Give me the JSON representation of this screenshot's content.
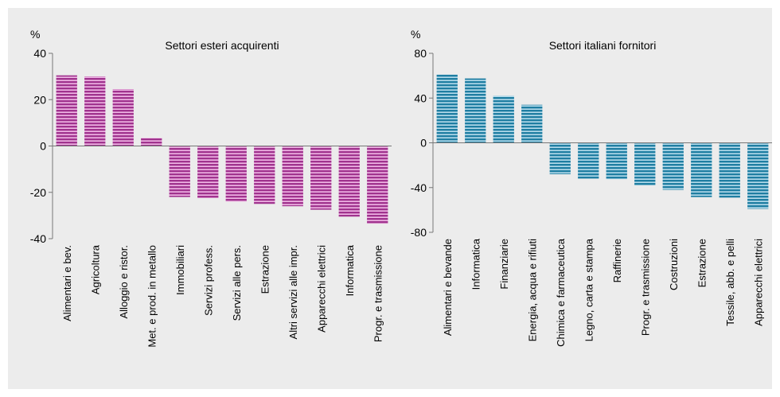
{
  "chart_data": [
    {
      "type": "bar",
      "title": "Settori esteri acquirenti",
      "unit": "%",
      "ylim": [
        -40,
        40
      ],
      "yticks": [
        40,
        20,
        0,
        -20,
        -40
      ],
      "color": "#a0338e",
      "stripe_color": "#f0b8e6",
      "categories": [
        "Alimentari e bev.",
        "Agricoltura",
        "Alloggio e ristor.",
        "Met. e prod. in metallo",
        "Immobiliari",
        "Servizi profess.",
        "Servizi alle pers.",
        "Estrazione",
        "Altri servizi alle impr.",
        "Apparecchi elettrici",
        "Informatica",
        "Progr. e trasmissione"
      ],
      "values": [
        30.5,
        30,
        24.5,
        3.5,
        -22,
        -22.5,
        -24,
        -25,
        -26,
        -27.5,
        -30.5,
        -33.5
      ]
    },
    {
      "type": "bar",
      "title": "Settori italiani fornitori",
      "unit": "%",
      "ylim": [
        -80,
        80
      ],
      "yticks": [
        80,
        40,
        0,
        -40,
        -80
      ],
      "color": "#1f7ea2",
      "stripe_color": "#b6dcec",
      "categories": [
        "Alimentari e bevande",
        "Informatica",
        "Finanziarie",
        "Energia, acqua e rifiuti",
        "Chimica e farmaceutica",
        "Legno, carta e stampa",
        "Raffinerie",
        "Progr. e trasmissione",
        "Costruzioni",
        "Estrazione",
        "Tessile, abb. e pelli",
        "Apparecchi elettrici"
      ],
      "values": [
        61,
        57.5,
        42,
        34,
        -28,
        -32,
        -32.5,
        -38,
        -42,
        -48.5,
        -49,
        -59
      ]
    }
  ]
}
